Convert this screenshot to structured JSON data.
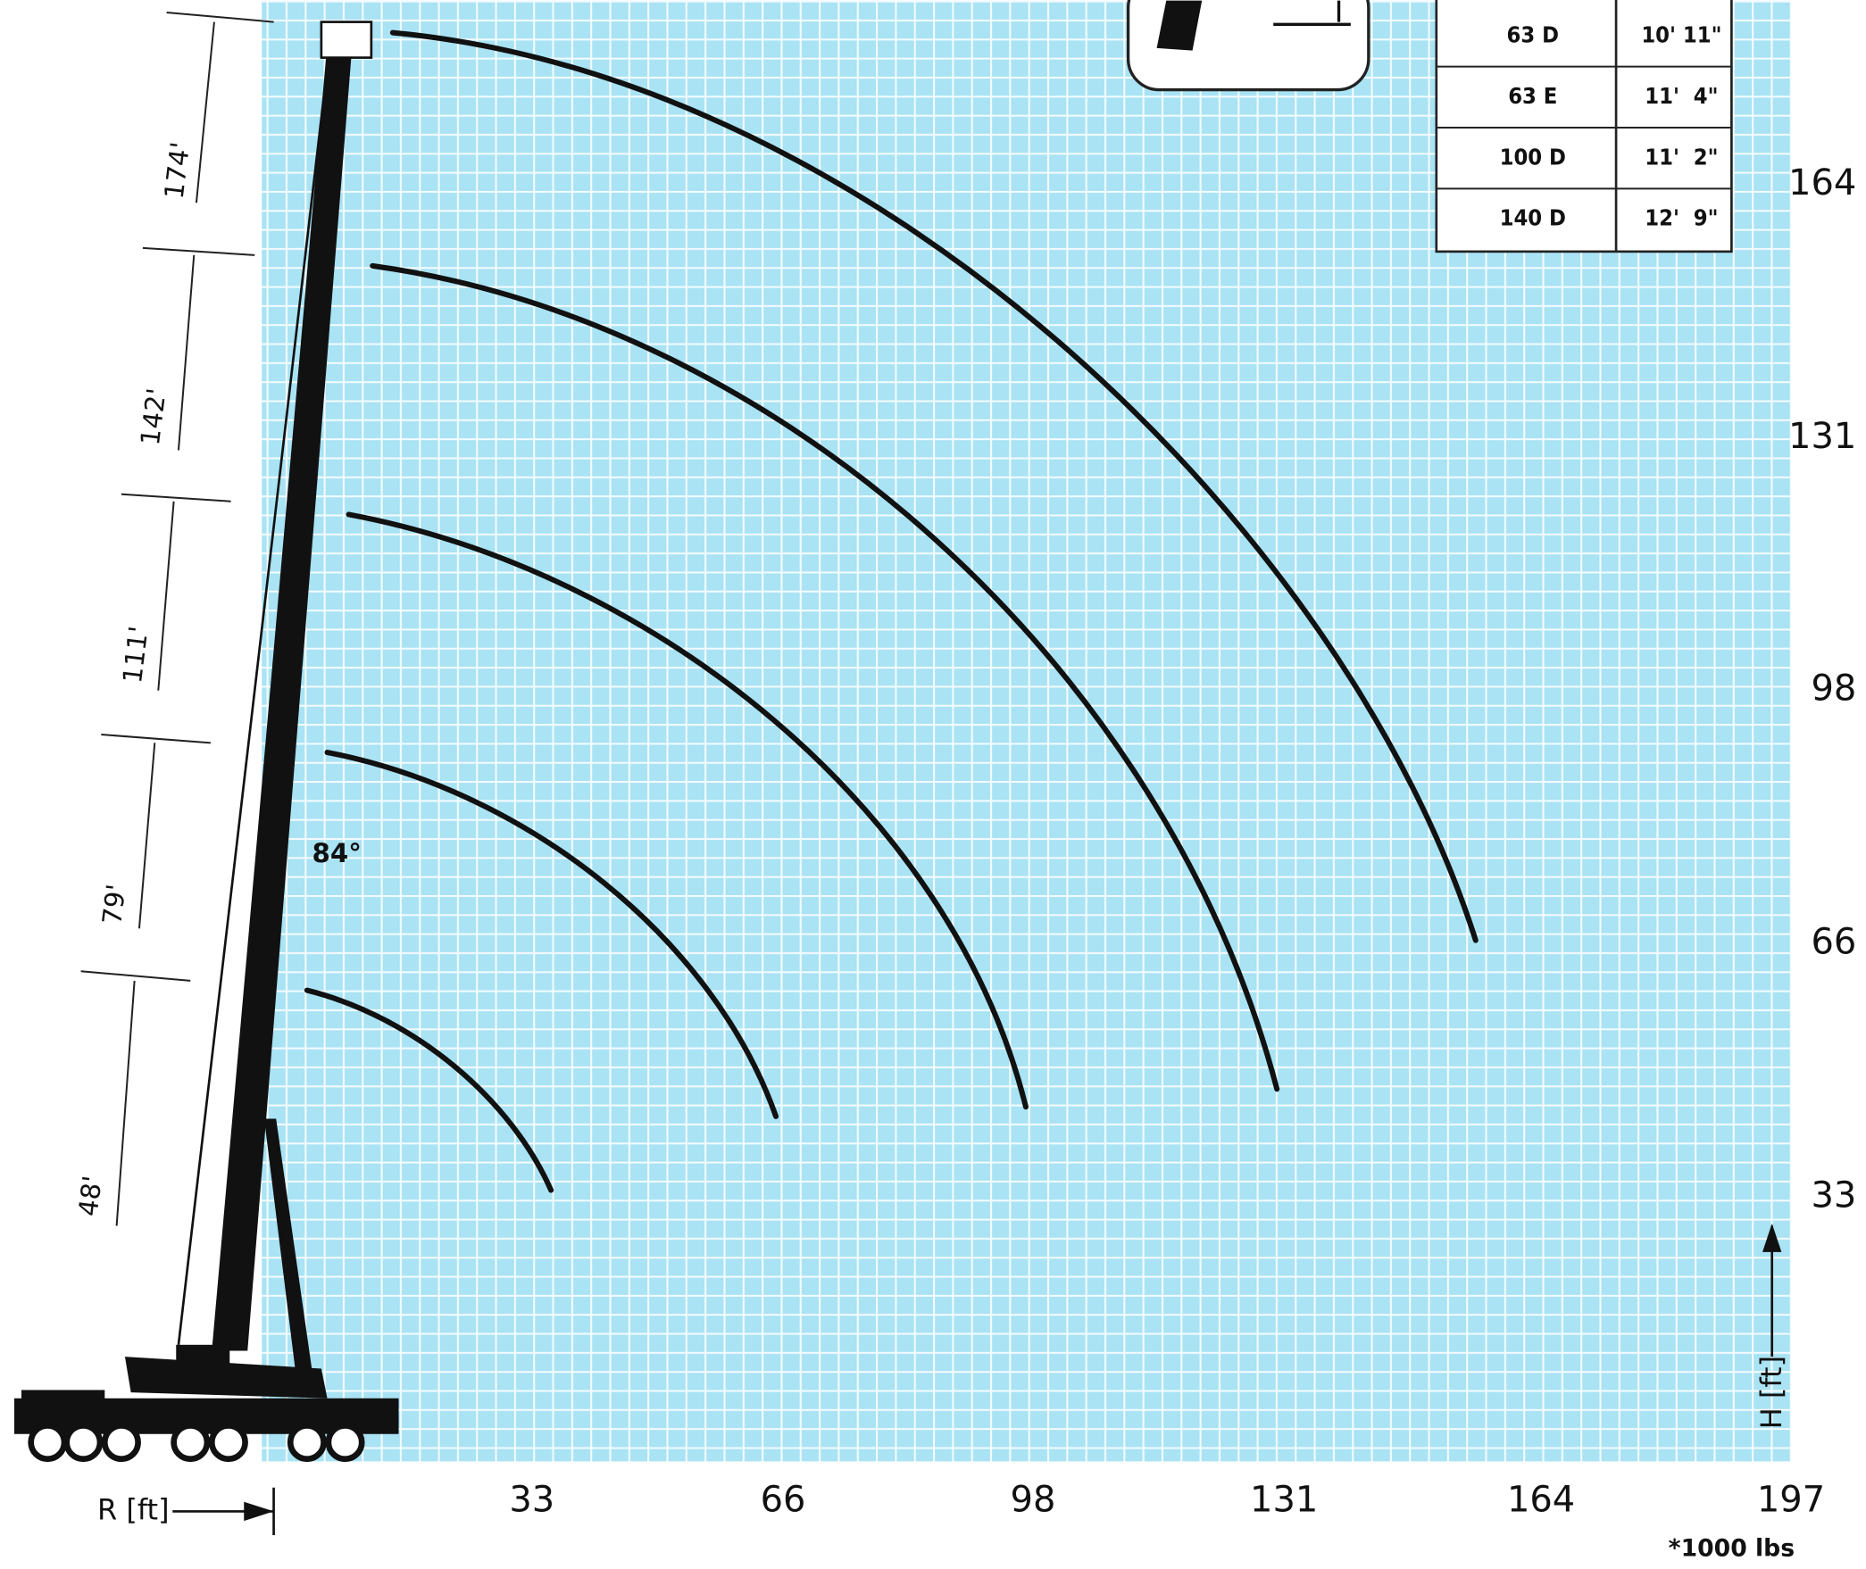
{
  "axes": {
    "x_label": "R [ft]",
    "y_label": "H [ft]",
    "x_ticks": [
      "33",
      "66",
      "98",
      "131",
      "164",
      "197"
    ],
    "y_ticks": [
      "164",
      "131",
      "98",
      "66",
      "33"
    ]
  },
  "boom_lengths": [
    "174'",
    "142'",
    "111'",
    "79'",
    "48'"
  ],
  "angle": "84°",
  "table": {
    "rows": [
      [
        "63 D",
        "10' 11\""
      ],
      [
        "63 E",
        "11'  4\""
      ],
      [
        "100 D",
        "11'  2\""
      ],
      [
        "140 D",
        "12'  9\""
      ]
    ]
  },
  "footnote": "*1000 lbs"
}
